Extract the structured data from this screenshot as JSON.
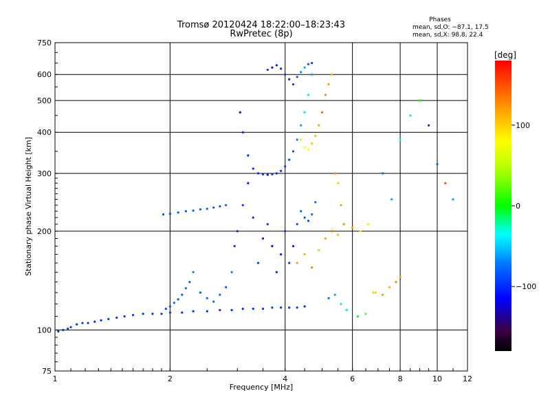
{
  "header": {
    "title": "Tromsø 20120424 18:22:00–18:23:43",
    "subtitle": "RwPretec (8p)",
    "phases_title": "Phases",
    "phases_o": "mean, sd,O: −87.1, 17.5",
    "phases_x": "mean, sd,X: 98.8, 22.4"
  },
  "colorbar": {
    "label": "[deg]",
    "ticks": [
      {
        "value": 100,
        "label": "100"
      },
      {
        "value": 0,
        "label": "0"
      },
      {
        "value": -100,
        "label": "−100"
      }
    ],
    "range": [
      -180,
      180
    ]
  },
  "chart_data": {
    "type": "scatter",
    "title": "Tromsø 20120424 18:22:00–18:23:43",
    "subtitle": "RwPretec (8p)",
    "xlabel": "Frequency [MHz]",
    "ylabel": "Stationary phase Virtual Height [km]",
    "x_scale": "log",
    "y_scale": "log",
    "xlim": [
      1,
      12
    ],
    "ylim": [
      75,
      750
    ],
    "x_ticks": [
      {
        "value": 1,
        "label": "1"
      },
      {
        "value": 2,
        "label": "2"
      },
      {
        "value": 4,
        "label": "4"
      },
      {
        "value": 6,
        "label": "6"
      },
      {
        "value": 8,
        "label": "8"
      },
      {
        "value": 10,
        "label": "10"
      },
      {
        "value": 12,
        "label": "12"
      }
    ],
    "y_ticks": [
      {
        "value": 75,
        "label": "75"
      },
      {
        "value": 100,
        "label": "100"
      },
      {
        "value": 200,
        "label": "200"
      },
      {
        "value": 300,
        "label": "300"
      },
      {
        "value": 400,
        "label": "400"
      },
      {
        "value": 500,
        "label": "500"
      },
      {
        "value": 600,
        "label": "600"
      },
      {
        "value": 750,
        "label": "750"
      }
    ],
    "grid": true,
    "color_scale": "phase [deg], rainbow",
    "series": [
      {
        "x": [
          1.02,
          1.05,
          1.08,
          1.1,
          1.14,
          1.18,
          1.22,
          1.27,
          1.32,
          1.38,
          1.45,
          1.52,
          1.6,
          1.7,
          1.8,
          1.9,
          2.0,
          2.15,
          2.3,
          2.5,
          2.7,
          2.9,
          3.1,
          3.3,
          3.5,
          3.7,
          3.9,
          4.1,
          4.3,
          4.5
        ],
        "y": [
          99,
          100,
          101,
          102,
          104,
          105,
          105,
          106,
          107,
          108,
          109,
          110,
          111,
          112,
          112,
          112,
          113,
          113,
          114,
          114,
          115,
          115,
          116,
          116,
          116,
          117,
          117,
          117,
          117,
          118
        ],
        "phase": [
          -100,
          -100,
          -95,
          -100,
          -100,
          -95,
          -100,
          -100,
          -100,
          -95,
          -100,
          -100,
          -95,
          -100,
          -100,
          -100,
          -95,
          -100,
          -100,
          -100,
          -95,
          -100,
          -100,
          -100,
          -100,
          -95,
          -100,
          -100,
          -95,
          -100
        ]
      },
      {
        "x": [
          1.95,
          2.0,
          2.05,
          2.1,
          2.15,
          2.2,
          2.25,
          2.3,
          2.4,
          2.5,
          2.6,
          2.7,
          2.8,
          2.9
        ],
        "y": [
          116,
          118,
          121,
          124,
          128,
          134,
          140,
          150,
          130,
          125,
          122,
          128,
          135,
          150
        ],
        "phase": [
          -90,
          -85,
          -80,
          -85,
          -80,
          -75,
          -80,
          -70,
          -85,
          -80,
          -80,
          -75,
          -80,
          -70
        ]
      },
      {
        "x": [
          1.92,
          2.0,
          2.1,
          2.2,
          2.3,
          2.4,
          2.5,
          2.6,
          2.7,
          2.8
        ],
        "y": [
          225,
          226,
          228,
          230,
          231,
          233,
          234,
          236,
          238,
          240
        ],
        "phase": [
          -90,
          -90,
          -85,
          -85,
          -80,
          -85,
          -80,
          -80,
          -85,
          -80
        ]
      },
      {
        "x": [
          2.95,
          3.0,
          3.1,
          3.2,
          3.3,
          3.4,
          3.5,
          3.6,
          3.7,
          3.8,
          3.9,
          4.0,
          4.1,
          4.2,
          4.3,
          4.4,
          4.5,
          4.6,
          4.7,
          4.8
        ],
        "y": [
          180,
          200,
          240,
          280,
          220,
          160,
          190,
          210,
          180,
          150,
          170,
          200,
          160,
          180,
          210,
          230,
          220,
          215,
          225,
          245
        ],
        "phase": [
          -100,
          -105,
          -100,
          -110,
          -100,
          -95,
          -105,
          -100,
          -110,
          -100,
          -105,
          -95,
          -100,
          -110,
          -90,
          -80,
          -85,
          -90,
          -80,
          -75
        ]
      },
      {
        "x": [
          3.05,
          3.1,
          3.2,
          3.3,
          3.4,
          3.5,
          3.6,
          3.7,
          3.8,
          3.9,
          4.0,
          4.1,
          4.2,
          4.3,
          4.4,
          4.5,
          4.6,
          4.7
        ],
        "y": [
          460,
          400,
          340,
          310,
          300,
          298,
          297,
          298,
          300,
          305,
          315,
          330,
          350,
          380,
          420,
          460,
          520,
          600
        ],
        "phase": [
          -110,
          -105,
          -100,
          -100,
          -105,
          -100,
          -110,
          -100,
          -105,
          -100,
          -95,
          -90,
          -85,
          -70,
          -60,
          -40,
          -20,
          -60
        ]
      },
      {
        "x": [
          3.6,
          3.7,
          3.8,
          3.9,
          4.0,
          4.1,
          4.2,
          4.3,
          4.4,
          4.5,
          4.6,
          4.7
        ],
        "y": [
          620,
          630,
          640,
          625,
          600,
          580,
          560,
          590,
          610,
          630,
          645,
          650
        ],
        "phase": [
          -100,
          -110,
          -105,
          -100,
          -95,
          -100,
          -90,
          -80,
          -70,
          -60,
          -80,
          -90
        ]
      },
      {
        "x": [
          4.4,
          4.5,
          4.6,
          4.7,
          4.8,
          4.9,
          5.0,
          5.1,
          5.2,
          5.3,
          5.4,
          5.5,
          5.6
        ],
        "y": [
          380,
          360,
          355,
          370,
          390,
          420,
          460,
          520,
          560,
          600,
          300,
          280,
          240
        ],
        "phase": [
          60,
          70,
          80,
          100,
          110,
          120,
          140,
          130,
          120,
          110,
          130,
          100,
          120
        ]
      },
      {
        "x": [
          4.3,
          4.5,
          4.7,
          4.9,
          5.1,
          5.3,
          5.5,
          5.7,
          6.0,
          6.3,
          6.6,
          6.9,
          7.2,
          7.5,
          7.8,
          8.0
        ],
        "y": [
          160,
          170,
          155,
          175,
          190,
          200,
          195,
          210,
          205,
          200,
          210,
          130,
          128,
          135,
          140,
          145
        ],
        "phase": [
          120,
          110,
          130,
          100,
          120,
          140,
          110,
          130,
          120,
          90,
          60,
          100,
          120,
          110,
          130,
          120
        ]
      },
      {
        "x": [
          5.2,
          5.4,
          5.6,
          5.8,
          6.2,
          6.5,
          6.8,
          7.2,
          7.6,
          8.0,
          8.5,
          9.0,
          9.5,
          10.0,
          10.5,
          11.0
        ],
        "y": [
          125,
          128,
          120,
          115,
          110,
          112,
          130,
          300,
          250,
          380,
          450,
          500,
          420,
          320,
          280,
          250
        ],
        "phase": [
          -80,
          -60,
          -40,
          -20,
          0,
          20,
          40,
          -80,
          -60,
          -40,
          -20,
          0,
          -100,
          -80,
          150,
          -60
        ]
      }
    ]
  }
}
